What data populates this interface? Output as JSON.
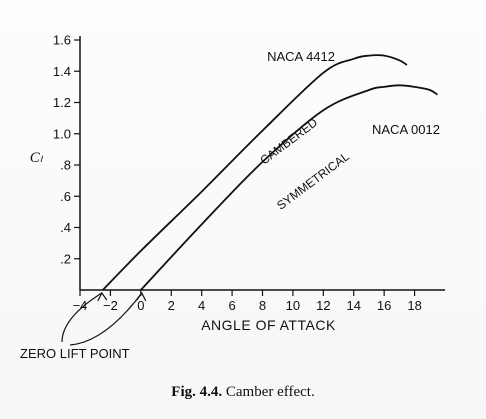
{
  "chart_data": {
    "type": "line",
    "xlabel": "ANGLE OF ATTACK",
    "ylabel": "Cₗ",
    "xlim": [
      -4,
      20
    ],
    "ylim": [
      0,
      1.6
    ],
    "x_ticks": [
      -4,
      -2,
      0,
      2,
      4,
      6,
      8,
      10,
      12,
      14,
      16,
      18
    ],
    "y_ticks": [
      0.2,
      0.4,
      0.6,
      0.8,
      1.0,
      1.2,
      1.4,
      1.6
    ],
    "y_tick_labels": [
      ".2",
      ".4",
      ".6",
      ".8",
      "1.0",
      "1.2",
      "1.4",
      "1.6"
    ],
    "grid": false,
    "series": [
      {
        "name": "NACA 4412",
        "x": [
          -2.5,
          0,
          4,
          8,
          12,
          14,
          15,
          16,
          17,
          17.5
        ],
        "y": [
          0,
          0.25,
          0.63,
          1.02,
          1.39,
          1.48,
          1.5,
          1.5,
          1.47,
          1.44
        ]
      },
      {
        "name": "NACA 0012",
        "x": [
          0,
          4,
          8,
          12,
          15,
          16,
          17,
          18,
          19,
          19.5
        ],
        "y": [
          0,
          0.42,
          0.82,
          1.15,
          1.28,
          1.3,
          1.31,
          1.3,
          1.28,
          1.25
        ]
      }
    ],
    "annotations": {
      "cambered": "CAMBERED",
      "symmetrical": "SYMMETRICAL",
      "zero_lift": "ZERO LIFT POINT"
    }
  },
  "caption": {
    "label": "Fig. 4.4.",
    "text": "Camber effect."
  }
}
